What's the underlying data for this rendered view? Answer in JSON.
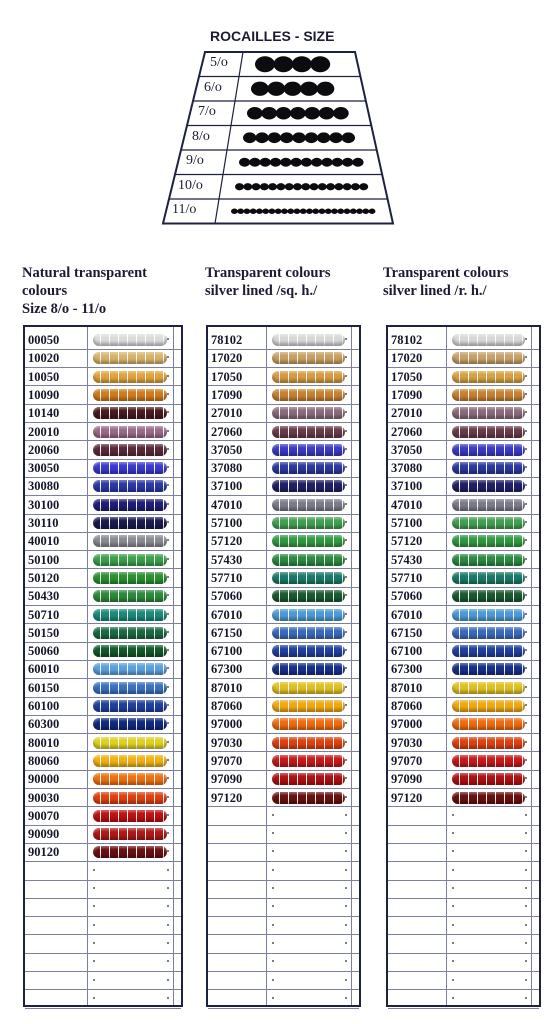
{
  "size_chart": {
    "title": "ROCAILLES - SIZE",
    "sizes": [
      "5/o",
      "6/o",
      "7/o",
      "8/o",
      "9/o",
      "10/o",
      "11/o"
    ]
  },
  "columns": [
    {
      "header": [
        "Natural transparent",
        "colours",
        "Size 8/o - 11/o"
      ],
      "items": [
        {
          "code": "00050",
          "color": "#dcdcdc"
        },
        {
          "code": "10020",
          "color": "#d9b36a"
        },
        {
          "code": "10050",
          "color": "#e3a23a"
        },
        {
          "code": "10090",
          "color": "#d07a1c"
        },
        {
          "code": "10140",
          "color": "#4a1a1e"
        },
        {
          "code": "20010",
          "color": "#9a6a8a"
        },
        {
          "code": "20060",
          "color": "#5a2a3a"
        },
        {
          "code": "30050",
          "color": "#3a3ad0"
        },
        {
          "code": "30080",
          "color": "#2a38a8"
        },
        {
          "code": "30100",
          "color": "#1e1e7a"
        },
        {
          "code": "30110",
          "color": "#1a1a50"
        },
        {
          "code": "40010",
          "color": "#8a8a92"
        },
        {
          "code": "50100",
          "color": "#3aa04a"
        },
        {
          "code": "50120",
          "color": "#2a9030"
        },
        {
          "code": "50430",
          "color": "#2a8a3a"
        },
        {
          "code": "50710",
          "color": "#1a8a7a"
        },
        {
          "code": "50150",
          "color": "#1a6a40"
        },
        {
          "code": "50060",
          "color": "#105a28"
        },
        {
          "code": "60010",
          "color": "#5aa0e0"
        },
        {
          "code": "60150",
          "color": "#3a70c0"
        },
        {
          "code": "60100",
          "color": "#2040a0"
        },
        {
          "code": "60300",
          "color": "#102a80"
        },
        {
          "code": "80010",
          "color": "#e0d020"
        },
        {
          "code": "80060",
          "color": "#f0b010"
        },
        {
          "code": "90000",
          "color": "#f07010"
        },
        {
          "code": "90030",
          "color": "#e04010"
        },
        {
          "code": "90070",
          "color": "#c01010"
        },
        {
          "code": "90090",
          "color": "#b01818"
        },
        {
          "code": "90120",
          "color": "#6a1010"
        }
      ]
    },
    {
      "header": [
        "Transparent colours",
        "silver lined /sq. h./"
      ],
      "items": [
        {
          "code": "78102",
          "color": "#d8d8d8"
        },
        {
          "code": "17020",
          "color": "#caa060"
        },
        {
          "code": "17050",
          "color": "#d89a40"
        },
        {
          "code": "17090",
          "color": "#c88030"
        },
        {
          "code": "27010",
          "color": "#8a6a7a"
        },
        {
          "code": "27060",
          "color": "#6a3a4a"
        },
        {
          "code": "37050",
          "color": "#3a3ac8"
        },
        {
          "code": "37080",
          "color": "#2a3aa0"
        },
        {
          "code": "37100",
          "color": "#20206a"
        },
        {
          "code": "47010",
          "color": "#7a7a8a"
        },
        {
          "code": "57100",
          "color": "#40a050"
        },
        {
          "code": "57120",
          "color": "#309a40"
        },
        {
          "code": "57430",
          "color": "#2a8a40"
        },
        {
          "code": "57710",
          "color": "#1a7a6a"
        },
        {
          "code": "57060",
          "color": "#1a5a30"
        },
        {
          "code": "67010",
          "color": "#4a9ad8"
        },
        {
          "code": "67150",
          "color": "#3a6ac0"
        },
        {
          "code": "67100",
          "color": "#2040a0"
        },
        {
          "code": "67300",
          "color": "#18308a"
        },
        {
          "code": "87010",
          "color": "#e0c020"
        },
        {
          "code": "87060",
          "color": "#f0a810"
        },
        {
          "code": "97000",
          "color": "#f06a10"
        },
        {
          "code": "97030",
          "color": "#e04010"
        },
        {
          "code": "97070",
          "color": "#c81818"
        },
        {
          "code": "97090",
          "color": "#b01010"
        },
        {
          "code": "97120",
          "color": "#6a1010"
        }
      ]
    },
    {
      "header": [
        "Transparent colours",
        "silver lined /r. h./"
      ],
      "items": [
        {
          "code": "78102",
          "color": "#d8d8d8"
        },
        {
          "code": "17020",
          "color": "#c8a068"
        },
        {
          "code": "17050",
          "color": "#d8a040"
        },
        {
          "code": "17090",
          "color": "#c88030"
        },
        {
          "code": "27010",
          "color": "#8a6a7a"
        },
        {
          "code": "27060",
          "color": "#6a3a4a"
        },
        {
          "code": "37050",
          "color": "#3a3ac8"
        },
        {
          "code": "37080",
          "color": "#2a3aa0"
        },
        {
          "code": "37100",
          "color": "#20206a"
        },
        {
          "code": "47010",
          "color": "#7a7a8a"
        },
        {
          "code": "57100",
          "color": "#40a050"
        },
        {
          "code": "57120",
          "color": "#309a40"
        },
        {
          "code": "57430",
          "color": "#2a8a40"
        },
        {
          "code": "57710",
          "color": "#1a7a6a"
        },
        {
          "code": "57060",
          "color": "#1a5a30"
        },
        {
          "code": "67010",
          "color": "#4a9ad8"
        },
        {
          "code": "67150",
          "color": "#3a6ac0"
        },
        {
          "code": "67100",
          "color": "#2040a0"
        },
        {
          "code": "67300",
          "color": "#18308a"
        },
        {
          "code": "87010",
          "color": "#e0c020"
        },
        {
          "code": "87060",
          "color": "#f0a810"
        },
        {
          "code": "97000",
          "color": "#f06a10"
        },
        {
          "code": "97030",
          "color": "#e04010"
        },
        {
          "code": "97070",
          "color": "#c81818"
        },
        {
          "code": "97090",
          "color": "#b01010"
        },
        {
          "code": "97120",
          "color": "#6a1010"
        }
      ]
    }
  ]
}
